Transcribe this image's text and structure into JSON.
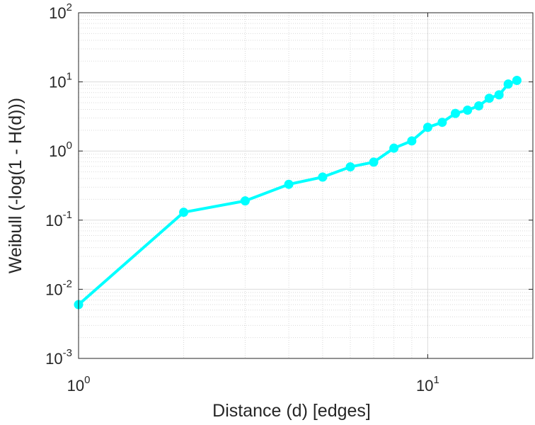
{
  "chart_data": {
    "type": "line",
    "title": "",
    "xlabel": "Distance (d) [edges]",
    "ylabel": "Weibull (-log(1 - H(d)))",
    "x_scale": "log",
    "y_scale": "log",
    "xlim": [
      1,
      20
    ],
    "ylim": [
      0.001,
      100
    ],
    "x_ticks": [
      {
        "value": 1,
        "base": "10",
        "exp": "0"
      },
      {
        "value": 10,
        "base": "10",
        "exp": "1"
      }
    ],
    "y_ticks": [
      {
        "value": 0.001,
        "base": "10",
        "exp": "-3"
      },
      {
        "value": 0.01,
        "base": "10",
        "exp": "-2"
      },
      {
        "value": 0.1,
        "base": "10",
        "exp": "-1"
      },
      {
        "value": 1,
        "base": "10",
        "exp": "0"
      },
      {
        "value": 10,
        "base": "10",
        "exp": "1"
      },
      {
        "value": 100,
        "base": "10",
        "exp": "2"
      }
    ],
    "grid": true,
    "minor_grid": true,
    "line_color": "#00ffff",
    "series": [
      {
        "x": [
          1,
          2,
          3,
          4,
          5,
          6,
          7,
          8,
          9,
          10,
          11,
          12,
          13,
          14,
          15,
          16,
          17,
          18
        ],
        "y": [
          0.006,
          0.13,
          0.19,
          0.33,
          0.42,
          0.59,
          0.69,
          1.1,
          1.4,
          2.2,
          2.6,
          3.5,
          3.9,
          4.5,
          5.8,
          6.5,
          9.3,
          10.5
        ]
      }
    ]
  }
}
